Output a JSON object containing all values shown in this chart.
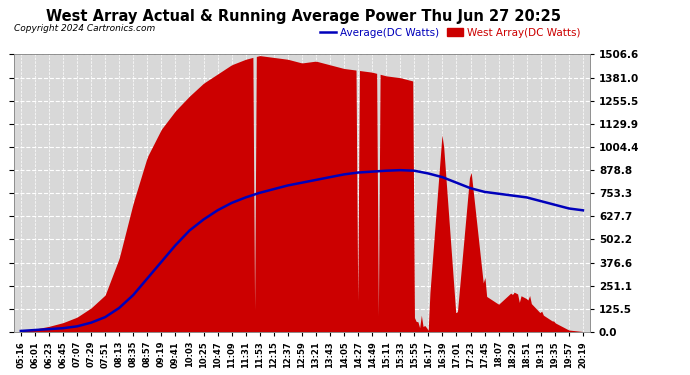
{
  "title": "West Array Actual & Running Average Power Thu Jun 27 20:25",
  "copyright": "Copyright 2024 Cartronics.com",
  "legend_avg": "Average(DC Watts)",
  "legend_west": "West Array(DC Watts)",
  "yticks": [
    0.0,
    125.5,
    251.1,
    376.6,
    502.2,
    627.7,
    753.3,
    878.8,
    1004.4,
    1129.9,
    1255.5,
    1381.0,
    1506.6
  ],
  "ymax": 1506.6,
  "ymin": 0.0,
  "bg_color": "#ffffff",
  "plot_bg_color": "#d8d8d8",
  "grid_color": "#ffffff",
  "bar_color": "#cc0000",
  "avg_color": "#0000bb",
  "xtick_labels": [
    "05:16",
    "06:01",
    "06:23",
    "06:45",
    "07:07",
    "07:29",
    "07:51",
    "08:13",
    "08:35",
    "08:57",
    "09:19",
    "09:41",
    "10:03",
    "10:25",
    "10:47",
    "11:09",
    "11:31",
    "11:53",
    "12:15",
    "12:37",
    "12:59",
    "13:21",
    "13:43",
    "14:05",
    "14:27",
    "14:49",
    "15:11",
    "15:33",
    "15:55",
    "16:17",
    "16:39",
    "17:01",
    "17:23",
    "17:45",
    "18:07",
    "18:29",
    "18:51",
    "19:13",
    "19:35",
    "19:57",
    "20:19"
  ],
  "west_values": [
    5,
    15,
    30,
    50,
    80,
    130,
    200,
    400,
    700,
    950,
    1100,
    1200,
    1280,
    1350,
    1400,
    1450,
    1480,
    1500,
    1490,
    1480,
    1460,
    1470,
    1450,
    1430,
    1420,
    1410,
    1390,
    1380,
    1360,
    100,
    1100,
    50,
    900,
    200,
    150,
    220,
    180,
    100,
    50,
    10,
    2
  ],
  "avg_values": [
    5,
    10,
    15,
    20,
    30,
    50,
    80,
    130,
    200,
    290,
    380,
    470,
    550,
    610,
    660,
    700,
    730,
    755,
    775,
    795,
    810,
    825,
    840,
    855,
    865,
    870,
    875,
    878,
    875,
    860,
    840,
    810,
    780,
    760,
    750,
    740,
    730,
    710,
    690,
    670,
    660
  ]
}
